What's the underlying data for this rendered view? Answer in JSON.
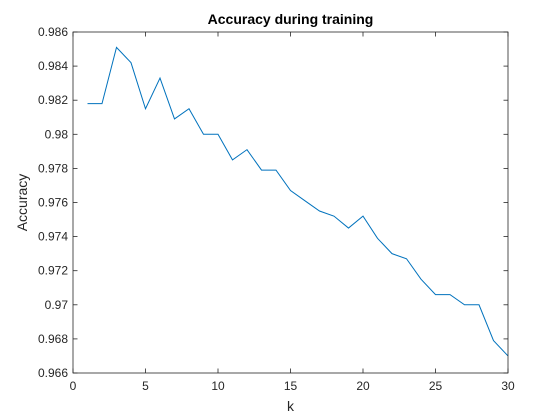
{
  "chart_data": {
    "type": "line",
    "title": "Accuracy during training",
    "xlabel": "k",
    "ylabel": "Accuracy",
    "xlim": [
      0,
      30
    ],
    "ylim": [
      0.966,
      0.986
    ],
    "xticks": [
      0,
      5,
      10,
      15,
      20,
      25,
      30
    ],
    "xtick_labels": [
      "0",
      "5",
      "10",
      "15",
      "20",
      "25",
      "30"
    ],
    "yticks": [
      0.966,
      0.968,
      0.97,
      0.972,
      0.974,
      0.976,
      0.978,
      0.98,
      0.982,
      0.984,
      0.986
    ],
    "ytick_labels": [
      "0.966",
      "0.968",
      "0.97",
      "0.972",
      "0.974",
      "0.976",
      "0.978",
      "0.98",
      "0.982",
      "0.984",
      "0.986"
    ],
    "grid": false,
    "legend": "none",
    "line_color": "#0072BD",
    "series": [
      {
        "x": [
          1,
          2,
          3,
          4,
          5,
          6,
          7,
          8,
          9,
          10,
          11,
          12,
          13,
          14,
          15,
          16,
          17,
          18,
          19,
          20,
          21,
          22,
          23,
          24,
          25,
          26,
          27,
          28,
          29,
          30
        ],
        "values": [
          0.9818,
          0.9818,
          0.9851,
          0.9842,
          0.9815,
          0.9833,
          0.9809,
          0.9815,
          0.98,
          0.98,
          0.9785,
          0.9791,
          0.9779,
          0.9779,
          0.9767,
          0.9761,
          0.9755,
          0.9752,
          0.9745,
          0.9752,
          0.9739,
          0.973,
          0.9727,
          0.9715,
          0.9706,
          0.9706,
          0.97,
          0.97,
          0.9679,
          0.967
        ]
      }
    ]
  }
}
